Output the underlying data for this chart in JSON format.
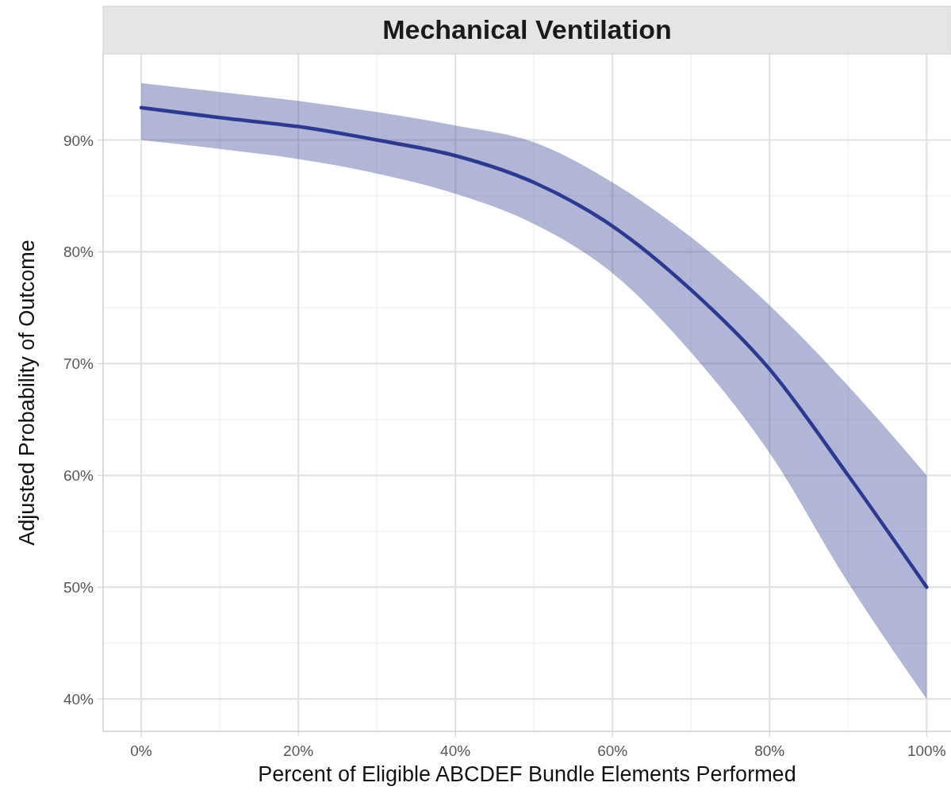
{
  "chart_data": {
    "type": "line",
    "title": "Mechanical Ventilation",
    "xlabel": "Percent of Eligible ABCDEF Bundle Elements Performed",
    "ylabel": "Adjusted Probability of Outcome",
    "x": [
      0,
      10,
      20,
      30,
      40,
      50,
      60,
      70,
      80,
      90,
      100
    ],
    "series": [
      {
        "color": "#2b3a8f",
        "values": [
          92.9,
          92.0,
          91.2,
          90.0,
          88.6,
          86.2,
          82.3,
          76.6,
          69.5,
          60.0,
          50.0
        ],
        "lower": [
          90.0,
          89.2,
          88.3,
          87.0,
          85.2,
          82.5,
          78.1,
          71.0,
          62.0,
          50.4,
          40.0
        ],
        "upper": [
          95.1,
          94.3,
          93.5,
          92.5,
          91.3,
          89.8,
          86.2,
          81.3,
          75.2,
          68.0,
          60.0
        ]
      }
    ],
    "xlim": [
      -4.85,
      103.1
    ],
    "ylim": [
      37.1,
      97.7
    ],
    "xticks": [
      {
        "value": 0,
        "label": "0%"
      },
      {
        "value": 20,
        "label": "20%"
      },
      {
        "value": 40,
        "label": "40%"
      },
      {
        "value": 60,
        "label": "60%"
      },
      {
        "value": 80,
        "label": "80%"
      },
      {
        "value": 100,
        "label": "100%"
      }
    ],
    "yticks": [
      {
        "value": 40,
        "label": "40%"
      },
      {
        "value": 50,
        "label": "50%"
      },
      {
        "value": 60,
        "label": "60%"
      },
      {
        "value": 70,
        "label": "70%"
      },
      {
        "value": 80,
        "label": "80%"
      },
      {
        "value": 90,
        "label": "90%"
      }
    ],
    "grid": true
  }
}
